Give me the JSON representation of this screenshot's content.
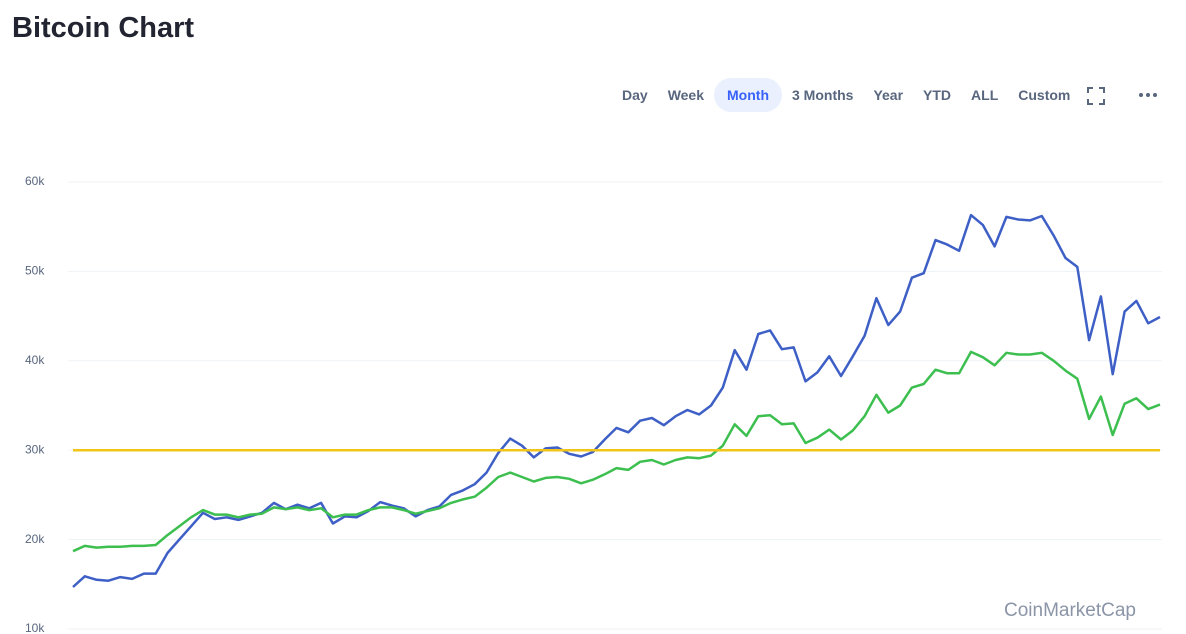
{
  "header": {
    "title": "Bitcoin Chart"
  },
  "toolbar": {
    "buttons": [
      "Day",
      "Week",
      "Month",
      "3 Months",
      "Year",
      "YTD",
      "ALL",
      "Custom"
    ],
    "active": 2
  },
  "chart_data": {
    "type": "line",
    "watermark": "CoinMarketCap",
    "ylim": [
      10000,
      60000
    ],
    "yticks": [
      {
        "value": 10000,
        "label": "10k"
      },
      {
        "value": 20000,
        "label": "20k"
      },
      {
        "value": 30000,
        "label": "30k"
      },
      {
        "value": 40000,
        "label": "40k"
      },
      {
        "value": 50000,
        "label": "50k"
      },
      {
        "value": 60000,
        "label": "60k"
      }
    ],
    "grid": true,
    "reference_line": {
      "value": 30000,
      "color": "#f0c419"
    },
    "series": [
      {
        "color": "#3e5fc6",
        "values": [
          14700,
          15900,
          15500,
          15400,
          15800,
          15600,
          16200,
          16200,
          18500,
          20000,
          21500,
          23000,
          22300,
          22500,
          22200,
          22600,
          23000,
          24100,
          23400,
          23900,
          23500,
          24100,
          21800,
          22600,
          22500,
          23200,
          24200,
          23800,
          23500,
          22600,
          23300,
          23700,
          25000,
          25500,
          26200,
          27500,
          29700,
          31300,
          30500,
          29200,
          30200,
          30300,
          29600,
          29300,
          29800,
          31200,
          32500,
          32000,
          33300,
          33600,
          32800,
          33800,
          34500,
          34000,
          35000,
          37000,
          41200,
          39000,
          43000,
          43400,
          41300,
          41500,
          37700,
          38700,
          40500,
          38300,
          40500,
          42800,
          47000,
          44000,
          45500,
          49300,
          49800,
          53500,
          53000,
          52300,
          56300,
          55200,
          52800,
          56100,
          55800,
          55700,
          56200,
          54000,
          51500,
          50500,
          42300,
          47200,
          38500,
          45500,
          46700,
          44200,
          44900
        ]
      },
      {
        "color": "#3cbf4f",
        "values": [
          18700,
          19300,
          19100,
          19200,
          19200,
          19300,
          19300,
          19400,
          20500,
          21500,
          22500,
          23300,
          22800,
          22800,
          22500,
          22800,
          22900,
          23600,
          23400,
          23600,
          23300,
          23500,
          22500,
          22800,
          22800,
          23300,
          23600,
          23600,
          23300,
          22900,
          23200,
          23500,
          24100,
          24500,
          24800,
          25800,
          27000,
          27500,
          27000,
          26500,
          26900,
          27000,
          26800,
          26300,
          26700,
          27300,
          28000,
          27800,
          28700,
          28900,
          28400,
          28900,
          29200,
          29100,
          29400,
          30500,
          32900,
          31600,
          33800,
          33900,
          32900,
          33000,
          30800,
          31400,
          32300,
          31200,
          32200,
          33800,
          36200,
          34200,
          35000,
          37000,
          37400,
          39000,
          38600,
          38600,
          41000,
          40400,
          39500,
          40900,
          40700,
          40700,
          40900,
          40000,
          38900,
          38000,
          33500,
          36000,
          31700,
          35200,
          35800,
          34600,
          35100
        ]
      }
    ]
  }
}
